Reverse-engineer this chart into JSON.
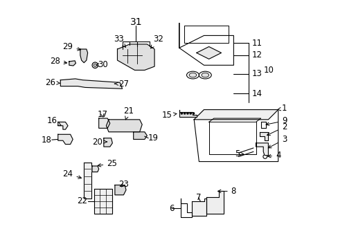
{
  "bg_color": "#ffffff",
  "line_color": "#000000",
  "figsize": [
    4.89,
    3.6
  ],
  "dpi": 100,
  "label_fontsize": 8.5,
  "label_fontsize_31": 10
}
